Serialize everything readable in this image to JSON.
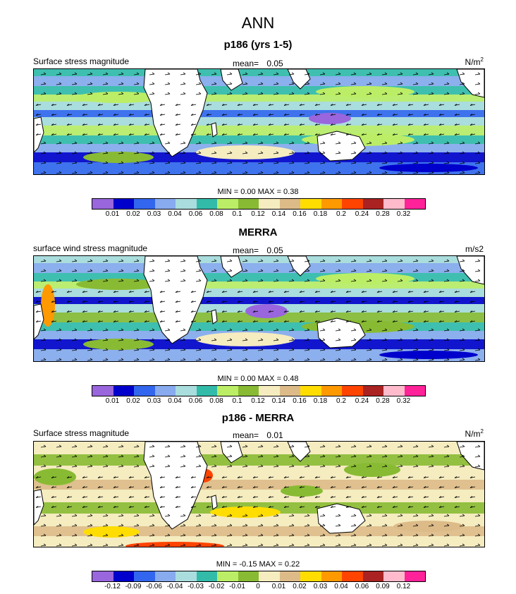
{
  "figure": {
    "title": "ANN"
  },
  "colors": {
    "ocean_levels": [
      "#9966dd",
      "#0000cc",
      "#3366ee",
      "#88aaee",
      "#aadddd",
      "#33bbaa",
      "#bbee66",
      "#88bb33",
      "#f5ecc0",
      "#ddbb88",
      "#ffdd00",
      "#ff9900",
      "#ff4400",
      "#aa2222",
      "#ffbbcc",
      "#ff2299"
    ],
    "land": "#ffffff",
    "outline": "#000000"
  },
  "panels": [
    {
      "title": "p186 (yrs 1-5)",
      "left_label": "Surface stress magnitude",
      "mean_label": "mean=",
      "mean_value": "0.05",
      "units": "N/m",
      "units_sup": "2",
      "minmax_text": "MIN =  0.00 MAX =  0.38",
      "colorbar_labels": [
        "0.01",
        "0.02",
        "0.03",
        "0.04",
        "0.06",
        "0.08",
        "0.1",
        "0.12",
        "0.14",
        "0.16",
        "0.18",
        "0.2",
        "0.24",
        "0.28",
        "0.32"
      ]
    },
    {
      "title": "MERRA",
      "left_label": "surface wind stress magnitude",
      "mean_label": "mean=",
      "mean_value": "0.05",
      "units": "m/s2",
      "units_sup": "",
      "minmax_text": "MIN =  0.00 MAX =  0.48",
      "colorbar_labels": [
        "0.01",
        "0.02",
        "0.03",
        "0.04",
        "0.06",
        "0.08",
        "0.1",
        "0.12",
        "0.14",
        "0.16",
        "0.18",
        "0.2",
        "0.24",
        "0.28",
        "0.32"
      ]
    },
    {
      "title": "p186 - MERRA",
      "left_label": "Surface stress magnitude",
      "mean_label": "mean=",
      "mean_value": "0.01",
      "units": "N/m",
      "units_sup": "2",
      "minmax_text": "MIN = -0.15 MAX =  0.22",
      "colorbar_labels": [
        "-0.12",
        "-0.09",
        "-0.06",
        "-0.04",
        "-0.03",
        "-0.02",
        "-0.01",
        "0",
        "0.01",
        "0.02",
        "0.03",
        "0.04",
        "0.06",
        "0.09",
        "0.12"
      ]
    }
  ],
  "chart_data": [
    {
      "type": "heatmap",
      "title": "p186 (yrs 1-5)",
      "variable": "Surface stress magnitude",
      "units": "N/m2",
      "mean": 0.05,
      "min": 0.0,
      "max": 0.38,
      "levels": [
        0.01,
        0.02,
        0.03,
        0.04,
        0.06,
        0.08,
        0.1,
        0.12,
        0.14,
        0.16,
        0.18,
        0.2,
        0.24,
        0.28,
        0.32
      ]
    },
    {
      "type": "heatmap",
      "title": "MERRA",
      "variable": "surface wind stress magnitude",
      "units": "m/s2",
      "mean": 0.05,
      "min": 0.0,
      "max": 0.48,
      "levels": [
        0.01,
        0.02,
        0.03,
        0.04,
        0.06,
        0.08,
        0.1,
        0.12,
        0.14,
        0.16,
        0.18,
        0.2,
        0.24,
        0.28,
        0.32
      ]
    },
    {
      "type": "heatmap",
      "title": "p186 - MERRA",
      "variable": "Surface stress magnitude",
      "units": "N/m2",
      "mean": 0.01,
      "min": -0.15,
      "max": 0.22,
      "levels": [
        -0.12,
        -0.09,
        -0.06,
        -0.04,
        -0.03,
        -0.02,
        -0.01,
        0,
        0.01,
        0.02,
        0.03,
        0.04,
        0.06,
        0.09,
        0.12
      ]
    }
  ]
}
